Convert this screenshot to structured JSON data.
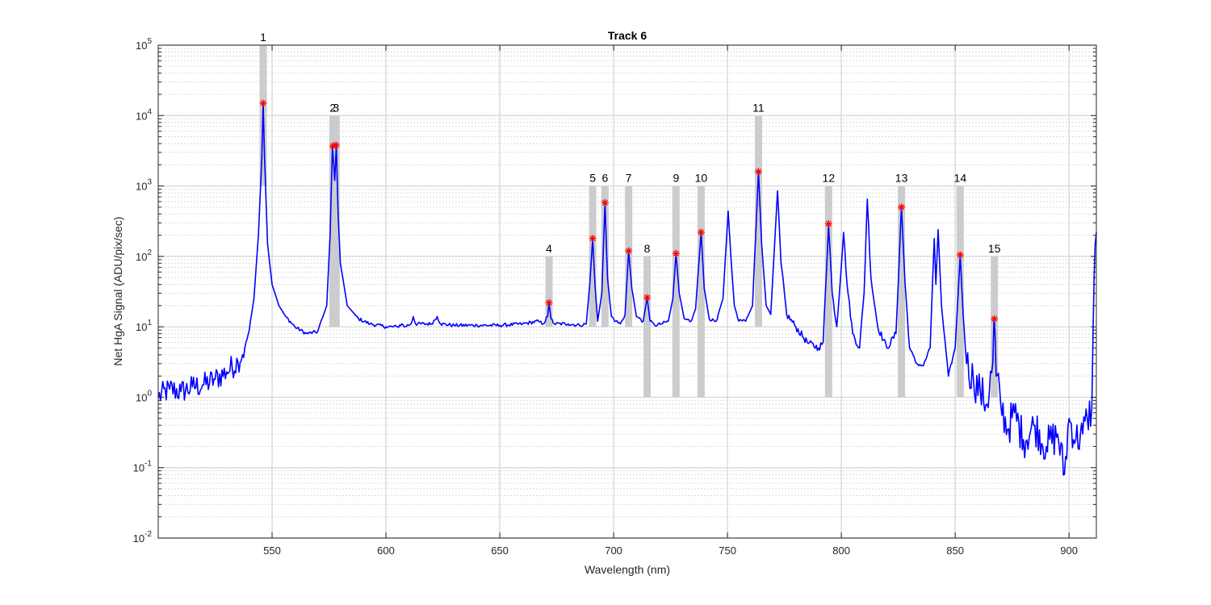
{
  "chart_data": {
    "type": "line",
    "title": "Track 6",
    "xlabel": "Wavelength (nm)",
    "ylabel": "Net HgA Signal (ADU/pix/sec)",
    "xlim": [
      500,
      912
    ],
    "ylim": [
      0.01,
      100000
    ],
    "yscale": "log",
    "grid": "major and minor",
    "xticks": [
      550,
      600,
      650,
      700,
      750,
      800,
      850,
      900
    ],
    "xtick_labels": [
      "550",
      "600",
      "650",
      "700",
      "750",
      "800",
      "850",
      "900"
    ],
    "yticks": [
      0.01,
      0.1,
      1,
      10,
      100,
      1000,
      10000,
      100000
    ],
    "ytick_labels": [
      {
        "base": "10",
        "exp": "-2"
      },
      {
        "base": "10",
        "exp": "-1"
      },
      {
        "base": "10",
        "exp": "0"
      },
      {
        "base": "10",
        "exp": "1"
      },
      {
        "base": "10",
        "exp": "2"
      },
      {
        "base": "10",
        "exp": "3"
      },
      {
        "base": "10",
        "exp": "4"
      },
      {
        "base": "10",
        "exp": "5"
      }
    ],
    "series_color": "#0000ff",
    "marker_color": "#ff0000",
    "band_color": "#cccccc",
    "baseline_points": [
      [
        500,
        1.0
      ],
      [
        505,
        1.3
      ],
      [
        510,
        1.2
      ],
      [
        515,
        1.4
      ],
      [
        520,
        1.5
      ],
      [
        525,
        1.8
      ],
      [
        530,
        2.3
      ],
      [
        535,
        3.2
      ],
      [
        538,
        5
      ],
      [
        540,
        9
      ],
      [
        542,
        25
      ],
      [
        544,
        200
      ],
      [
        545.5,
        2500
      ],
      [
        546.1,
        15000
      ],
      [
        546.7,
        2500
      ],
      [
        548,
        150
      ],
      [
        550,
        40
      ],
      [
        553,
        20
      ],
      [
        556,
        14
      ],
      [
        560,
        10
      ],
      [
        565,
        8
      ],
      [
        570,
        8.5
      ],
      [
        574,
        20
      ],
      [
        575.5,
        200
      ],
      [
        576.5,
        3700
      ],
      [
        577.5,
        1200
      ],
      [
        578.2,
        3800
      ],
      [
        579,
        400
      ],
      [
        580,
        80
      ],
      [
        583,
        20
      ],
      [
        588,
        13
      ],
      [
        593,
        11
      ],
      [
        600,
        10
      ],
      [
        605,
        10
      ],
      [
        607,
        11
      ],
      [
        608,
        10
      ],
      [
        611,
        11
      ],
      [
        612,
        14
      ],
      [
        613,
        11
      ],
      [
        620,
        11
      ],
      [
        622.5,
        14
      ],
      [
        624,
        11
      ],
      [
        630,
        10.5
      ],
      [
        640,
        10.5
      ],
      [
        650,
        10.5
      ],
      [
        660,
        11
      ],
      [
        667,
        12
      ],
      [
        669,
        11
      ],
      [
        671,
        14
      ],
      [
        671.6,
        22
      ],
      [
        672.5,
        13
      ],
      [
        674,
        11
      ],
      [
        680,
        11
      ],
      [
        685,
        10.5
      ],
      [
        688,
        11
      ],
      [
        689.5,
        40
      ],
      [
        690.8,
        180
      ],
      [
        691.8,
        40
      ],
      [
        693,
        12
      ],
      [
        694.8,
        30
      ],
      [
        696.2,
        580
      ],
      [
        697.3,
        50
      ],
      [
        699,
        14
      ],
      [
        701,
        12
      ],
      [
        703,
        11
      ],
      [
        705,
        15
      ],
      [
        706.6,
        120
      ],
      [
        708,
        35
      ],
      [
        710,
        14
      ],
      [
        713,
        12
      ],
      [
        714.7,
        26
      ],
      [
        716,
        12
      ],
      [
        718,
        10.5
      ],
      [
        721,
        11
      ],
      [
        724,
        12
      ],
      [
        726,
        25
      ],
      [
        727.4,
        110
      ],
      [
        728.8,
        30
      ],
      [
        731,
        13
      ],
      [
        734,
        12
      ],
      [
        736,
        18
      ],
      [
        738.4,
        220
      ],
      [
        739.8,
        35
      ],
      [
        742,
        13
      ],
      [
        745,
        12
      ],
      [
        748,
        25
      ],
      [
        750.3,
        440
      ],
      [
        751.5,
        100
      ],
      [
        753,
        20
      ],
      [
        755,
        12
      ],
      [
        758,
        12
      ],
      [
        761,
        20
      ],
      [
        763.6,
        1600
      ],
      [
        765,
        150
      ],
      [
        767,
        20
      ],
      [
        769,
        15
      ],
      [
        772,
        850
      ],
      [
        773.5,
        80
      ],
      [
        776,
        15
      ],
      [
        780,
        10
      ],
      [
        785,
        6
      ],
      [
        790,
        5
      ],
      [
        792,
        6
      ],
      [
        794.4,
        290
      ],
      [
        796,
        30
      ],
      [
        798,
        10
      ],
      [
        801,
        220
      ],
      [
        802.5,
        40
      ],
      [
        805,
        8
      ],
      [
        808,
        5
      ],
      [
        810,
        30
      ],
      [
        811.4,
        650
      ],
      [
        813,
        50
      ],
      [
        816,
        10
      ],
      [
        820,
        5
      ],
      [
        824,
        8
      ],
      [
        826.4,
        500
      ],
      [
        828,
        40
      ],
      [
        830,
        5
      ],
      [
        833,
        3
      ],
      [
        836,
        2.8
      ],
      [
        839,
        5
      ],
      [
        840.8,
        180
      ],
      [
        841.5,
        40
      ],
      [
        842.5,
        240
      ],
      [
        844,
        20
      ],
      [
        847,
        2
      ],
      [
        850,
        5
      ],
      [
        852.2,
        105
      ],
      [
        853.5,
        15
      ],
      [
        855,
        3
      ],
      [
        858,
        1.8
      ],
      [
        861,
        1.2
      ],
      [
        864,
        0.8
      ],
      [
        866.5,
        3
      ],
      [
        867.2,
        13
      ],
      [
        868,
        2
      ],
      [
        870,
        0.8
      ],
      [
        873,
        0.35
      ],
      [
        876,
        0.6
      ],
      [
        880,
        0.25
      ],
      [
        885,
        0.4
      ],
      [
        890,
        0.2
      ],
      [
        895,
        0.3
      ],
      [
        898,
        0.08
      ],
      [
        900,
        0.5
      ],
      [
        903,
        0.25
      ],
      [
        906,
        0.3
      ],
      [
        908,
        0.5
      ],
      [
        910,
        0.7
      ],
      [
        911,
        50
      ],
      [
        912,
        220
      ]
    ],
    "peaks": [
      {
        "label": "1",
        "x": 546.1,
        "y": 15000,
        "band_min": 1000,
        "band_max": 100000
      },
      {
        "label": "2",
        "x": 576.7,
        "y": 3700,
        "band_min": 10,
        "band_max": 10000
      },
      {
        "label": "3",
        "x": 578.1,
        "y": 3800,
        "band_min": 10,
        "band_max": 10000
      },
      {
        "label": "4",
        "x": 671.6,
        "y": 22,
        "band_min": 10,
        "band_max": 100
      },
      {
        "label": "5",
        "x": 690.8,
        "y": 180,
        "band_min": 10,
        "band_max": 1000
      },
      {
        "label": "6",
        "x": 696.2,
        "y": 580,
        "band_min": 10,
        "band_max": 1000
      },
      {
        "label": "7",
        "x": 706.6,
        "y": 120,
        "band_min": 10,
        "band_max": 1000
      },
      {
        "label": "8",
        "x": 714.7,
        "y": 26,
        "band_min": 1,
        "band_max": 100
      },
      {
        "label": "9",
        "x": 727.4,
        "y": 110,
        "band_min": 1,
        "band_max": 1000
      },
      {
        "label": "10",
        "x": 738.4,
        "y": 220,
        "band_min": 1,
        "band_max": 1000
      },
      {
        "label": "11",
        "x": 763.6,
        "y": 1600,
        "band_min": 10,
        "band_max": 10000
      },
      {
        "label": "12",
        "x": 794.4,
        "y": 290,
        "band_min": 1,
        "band_max": 1000
      },
      {
        "label": "13",
        "x": 826.4,
        "y": 500,
        "band_min": 1,
        "band_max": 1000
      },
      {
        "label": "14",
        "x": 852.2,
        "y": 105,
        "band_min": 1,
        "band_max": 1000
      },
      {
        "label": "15",
        "x": 867.2,
        "y": 13,
        "band_min": 1,
        "band_max": 100
      }
    ]
  }
}
